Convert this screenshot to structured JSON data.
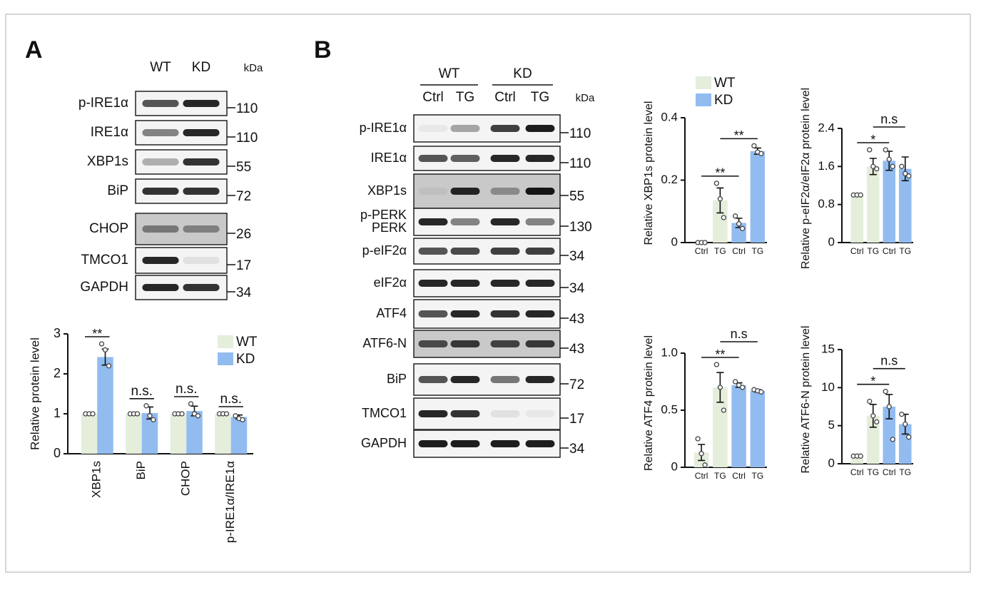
{
  "panels": [
    {
      "label": "A",
      "lanes": [
        "WT",
        "KD"
      ],
      "kda_unit": "kDa",
      "blots": [
        {
          "name": "p-IRE1α",
          "kda": 110
        },
        {
          "name": "IRE1α",
          "kda": 110
        },
        {
          "name": "XBP1s",
          "kda": 55
        },
        {
          "name": "BiP",
          "kda": 72
        },
        {
          "name": "CHOP",
          "kda": 26
        },
        {
          "name": "TMCO1",
          "kda": 17
        },
        {
          "name": "GAPDH",
          "kda": 34
        }
      ]
    },
    {
      "label": "B",
      "groups": [
        "WT",
        "KD"
      ],
      "lanes": [
        "Ctrl",
        "TG",
        "Ctrl",
        "TG"
      ],
      "kda_unit": "kDa",
      "blots": [
        {
          "name": "p-IRE1α",
          "kda": 110
        },
        {
          "name": "IRE1α",
          "kda": 110
        },
        {
          "name": "XBP1s",
          "kda": 55
        },
        {
          "name": [
            "p-PERK",
            "PERK"
          ],
          "kda": 130
        },
        {
          "name": "p-eIF2α",
          "kda": 34
        },
        {
          "name": "eIF2α",
          "kda": 34
        },
        {
          "name": "ATF4",
          "kda": 43
        },
        {
          "name": "ATF6-N",
          "kda": 43
        },
        {
          "name": "BiP",
          "kda": 72
        },
        {
          "name": "TMCO1",
          "kda": 17
        },
        {
          "name": "GAPDH",
          "kda": 34
        }
      ]
    }
  ],
  "chart_data": [
    {
      "type": "bar",
      "y_label": "Relative protein level",
      "categories": [
        "XBP1s",
        "BiP",
        "CHOP",
        "p-IRE1α/IRE1α"
      ],
      "ylim": [
        0,
        3
      ],
      "yticks": [
        0,
        1,
        2,
        3
      ],
      "legend": "upper right",
      "series": [
        {
          "name": "WT",
          "color": "#e4eedb",
          "values": [
            1,
            1,
            1,
            1
          ],
          "points": [
            [
              1,
              1,
              1
            ],
            [
              1,
              1,
              1
            ],
            [
              1,
              1,
              1
            ],
            [
              1,
              1,
              1
            ]
          ]
        },
        {
          "name": "KD",
          "color": "#92bcf0",
          "values": [
            2.42,
            1.02,
            1.07,
            0.92
          ],
          "errors": [
            0.2,
            0.15,
            0.12,
            0.05
          ],
          "points": [
            [
              2.75,
              2.6,
              2.2
            ],
            [
              1.2,
              0.95,
              0.85
            ],
            [
              1.25,
              1.0,
              0.95
            ],
            [
              0.95,
              0.88,
              0.85
            ]
          ]
        }
      ],
      "annotations": [
        {
          "text": "**",
          "category": 0
        },
        {
          "text": "n.s.",
          "category": 1
        },
        {
          "text": "n.s.",
          "category": 2
        },
        {
          "text": "n.s.",
          "category": 3
        }
      ]
    },
    {
      "type": "bar",
      "y_label": "Relative XBP1s protein level",
      "categories": [
        "Ctrl",
        "TG",
        "Ctrl",
        "TG"
      ],
      "ylim": [
        0,
        0.4
      ],
      "yticks": [
        0,
        0.2,
        0.4
      ],
      "legend": "upper left",
      "series": [
        {
          "name": "WT",
          "color": "#e4eedb",
          "values": [
            0,
            0.135,
            null,
            null
          ],
          "errors": [
            null,
            0.04,
            null,
            null
          ],
          "points": [
            [
              0,
              0,
              0
            ],
            [
              0.19,
              0.14,
              0.08
            ],
            null,
            null
          ]
        },
        {
          "name": "KD",
          "color": "#92bcf0",
          "values": [
            null,
            null,
            0.063,
            0.293
          ],
          "errors": [
            null,
            null,
            0.015,
            0.01
          ],
          "points": [
            null,
            null,
            [
              0.085,
              0.06,
              0.045
            ],
            [
              0.31,
              0.29,
              0.285
            ]
          ]
        }
      ],
      "annotations": [
        {
          "text": "**",
          "from": 0,
          "to": 2
        },
        {
          "text": "**",
          "from": 1,
          "to": 3
        }
      ]
    },
    {
      "type": "bar",
      "y_label": "Relative p-eIF2α/eIF2α protein level",
      "categories": [
        "Ctrl",
        "TG",
        "Ctrl",
        "TG"
      ],
      "ylim": [
        0,
        2.4
      ],
      "yticks": [
        0,
        0.8,
        1.6,
        2.4
      ],
      "series": [
        {
          "name": "WT",
          "color": "#e4eedb",
          "values": [
            1.0,
            1.6,
            null,
            null
          ],
          "errors": [
            null,
            0.17,
            null,
            null
          ],
          "points": [
            [
              1,
              1,
              1
            ],
            [
              1.95,
              1.6,
              1.55
            ],
            null,
            null
          ]
        },
        {
          "name": "KD",
          "color": "#92bcf0",
          "values": [
            null,
            null,
            1.72,
            1.55
          ],
          "errors": [
            null,
            null,
            0.2,
            0.25
          ],
          "points": [
            null,
            null,
            [
              1.95,
              1.75,
              1.6
            ],
            [
              1.6,
              1.45,
              1.4
            ]
          ]
        }
      ],
      "annotations": [
        {
          "text": "*",
          "from": 0,
          "to": 2
        },
        {
          "text": "n.s",
          "from": 1,
          "to": 3
        }
      ]
    },
    {
      "type": "bar",
      "y_label": "Relative ATF4 protein level",
      "categories": [
        "Ctrl",
        "TG",
        "Ctrl",
        "TG"
      ],
      "ylim": [
        0,
        1
      ],
      "yticks": [
        0,
        0.5,
        {
          "value": 1,
          "label": "1.0"
        }
      ],
      "series": [
        {
          "name": "WT",
          "color": "#e4eedb",
          "values": [
            0.13,
            0.7,
            null,
            null
          ],
          "errors": [
            0.07,
            0.13,
            null,
            null
          ],
          "points": [
            [
              0.25,
              0.12,
              0.02
            ],
            [
              0.9,
              0.7,
              0.5
            ],
            null,
            null
          ]
        },
        {
          "name": "KD",
          "color": "#92bcf0",
          "values": [
            null,
            null,
            0.72,
            0.67
          ],
          "errors": [
            null,
            null,
            0.02,
            0.01
          ],
          "points": [
            null,
            null,
            [
              0.75,
              0.72,
              0.7
            ],
            [
              0.68,
              0.67,
              0.66
            ]
          ]
        }
      ],
      "annotations": [
        {
          "text": "**",
          "from": 0,
          "to": 2
        },
        {
          "text": "n.s",
          "from": 1,
          "to": 3
        }
      ]
    },
    {
      "type": "bar",
      "y_label": "Relative ATF6-N protein level",
      "categories": [
        "Ctrl",
        "TG",
        "Ctrl",
        "TG"
      ],
      "ylim": [
        0,
        15
      ],
      "yticks": [
        0,
        5,
        10,
        15
      ],
      "series": [
        {
          "name": "WT",
          "color": "#e4eedb",
          "values": [
            1,
            6.3,
            null,
            null
          ],
          "errors": [
            null,
            1.5,
            null,
            null
          ],
          "points": [
            [
              1,
              1,
              1
            ],
            [
              8.2,
              6.3,
              5.5
            ],
            null,
            null
          ]
        },
        {
          "name": "KD",
          "color": "#92bcf0",
          "values": [
            null,
            null,
            7.5,
            5.2
          ],
          "errors": [
            null,
            null,
            1.6,
            1.3
          ],
          "points": [
            null,
            null,
            [
              9.5,
              7.5,
              3.2
            ],
            [
              6.5,
              5.2,
              3.5
            ]
          ]
        }
      ],
      "annotations": [
        {
          "text": "*",
          "from": 0,
          "to": 2
        },
        {
          "text": "n.s",
          "from": 1,
          "to": 3
        }
      ]
    }
  ]
}
